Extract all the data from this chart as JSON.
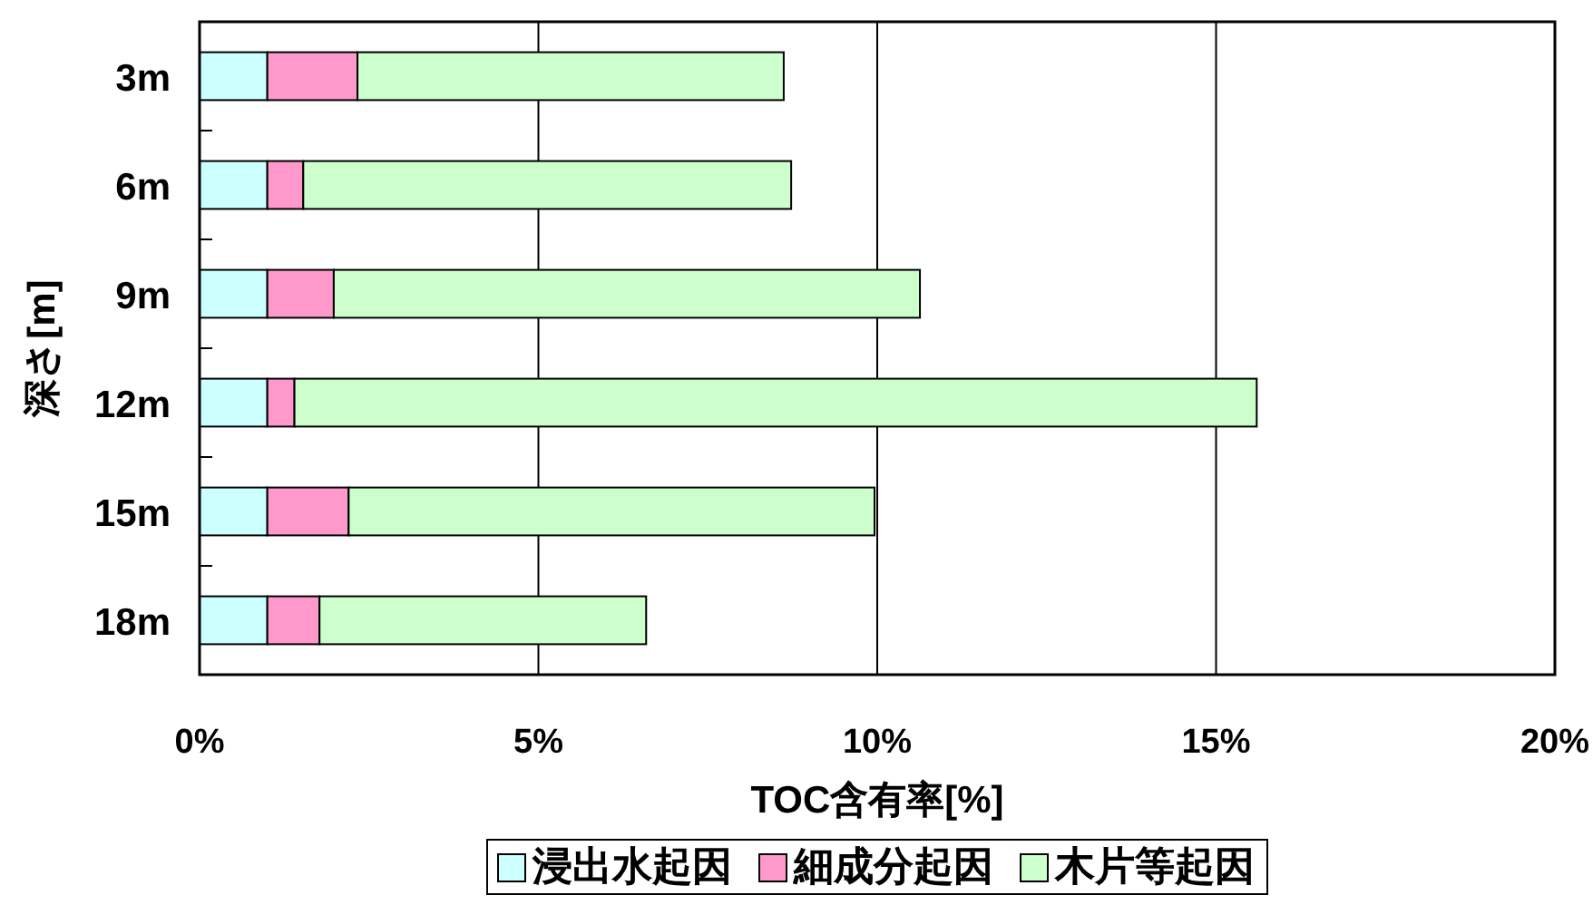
{
  "chart_data": {
    "type": "bar",
    "orientation": "horizontal",
    "stacked": true,
    "categories": [
      "3m",
      "6m",
      "9m",
      "12m",
      "15m",
      "18m"
    ],
    "series": [
      {
        "name": "浸出水起因",
        "color": "#ccffff",
        "values": [
          1.0,
          1.0,
          1.0,
          1.0,
          1.0,
          1.0
        ]
      },
      {
        "name": "細成分起因",
        "color": "#ff99cc",
        "values": [
          1.33,
          0.53,
          0.98,
          0.4,
          1.2,
          0.77
        ]
      },
      {
        "name": "木片等起因",
        "color": "#ccffcc",
        "values": [
          6.29,
          7.2,
          8.65,
          14.2,
          7.76,
          4.82
        ]
      }
    ],
    "xlim": [
      0,
      20
    ],
    "xticks": [
      {
        "value": 0,
        "label": "0%"
      },
      {
        "value": 5,
        "label": "5%"
      },
      {
        "value": 10,
        "label": "10%"
      },
      {
        "value": 15,
        "label": "15%"
      },
      {
        "value": 20,
        "label": "20%"
      }
    ],
    "xlabel": "TOC含有率[%]",
    "ylabel": "深さ[m]",
    "grid": "x",
    "legend": "bottom"
  }
}
